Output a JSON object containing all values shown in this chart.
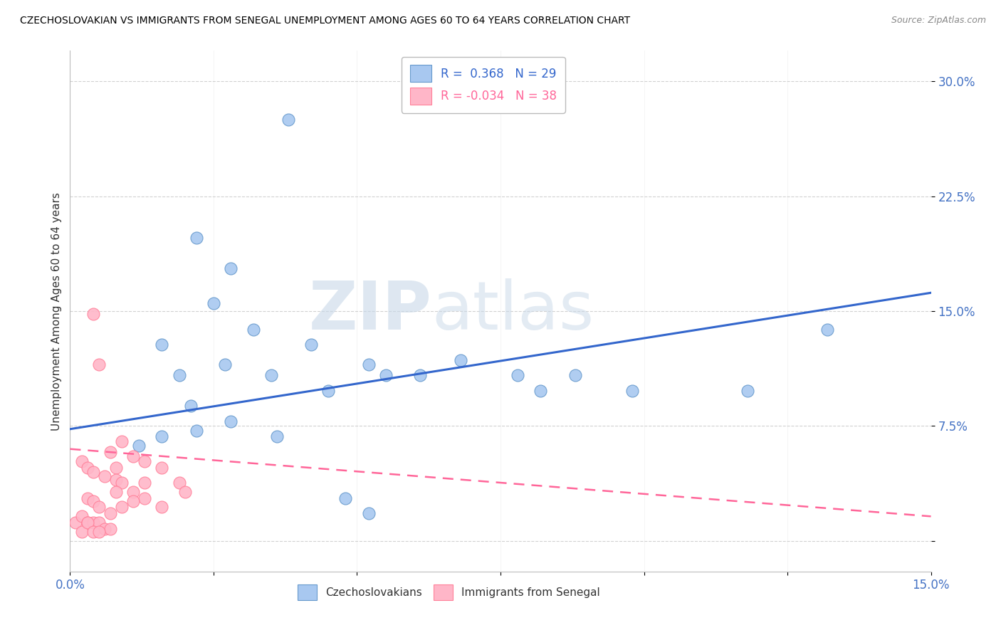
{
  "title": "CZECHOSLOVAKIAN VS IMMIGRANTS FROM SENEGAL UNEMPLOYMENT AMONG AGES 60 TO 64 YEARS CORRELATION CHART",
  "source": "Source: ZipAtlas.com",
  "ylabel": "Unemployment Among Ages 60 to 64 years",
  "xlim": [
    0.0,
    0.15
  ],
  "ylim": [
    -0.02,
    0.32
  ],
  "xticks": [
    0.0,
    0.025,
    0.05,
    0.075,
    0.1,
    0.125,
    0.15
  ],
  "xtick_labels": [
    "0.0%",
    "",
    "",
    "",
    "",
    "",
    "15.0%"
  ],
  "yticks": [
    0.0,
    0.075,
    0.15,
    0.225,
    0.3
  ],
  "ytick_labels": [
    "",
    "7.5%",
    "15.0%",
    "22.5%",
    "30.0%"
  ],
  "blue_scatter_x": [
    0.038,
    0.022,
    0.028,
    0.025,
    0.032,
    0.016,
    0.019,
    0.021,
    0.027,
    0.035,
    0.045,
    0.052,
    0.061,
    0.042,
    0.055,
    0.068,
    0.078,
    0.082,
    0.088,
    0.098,
    0.118,
    0.132,
    0.012,
    0.016,
    0.022,
    0.028,
    0.036,
    0.048,
    0.052
  ],
  "blue_scatter_y": [
    0.275,
    0.198,
    0.178,
    0.155,
    0.138,
    0.128,
    0.108,
    0.088,
    0.115,
    0.108,
    0.098,
    0.115,
    0.108,
    0.128,
    0.108,
    0.118,
    0.108,
    0.098,
    0.108,
    0.098,
    0.098,
    0.138,
    0.062,
    0.068,
    0.072,
    0.078,
    0.068,
    0.028,
    0.018
  ],
  "pink_scatter_x": [
    0.004,
    0.005,
    0.007,
    0.008,
    0.009,
    0.011,
    0.013,
    0.016,
    0.002,
    0.003,
    0.004,
    0.006,
    0.008,
    0.009,
    0.011,
    0.013,
    0.016,
    0.019,
    0.02,
    0.003,
    0.004,
    0.005,
    0.007,
    0.001,
    0.002,
    0.003,
    0.004,
    0.005,
    0.006,
    0.007,
    0.008,
    0.009,
    0.011,
    0.013,
    0.002,
    0.003,
    0.004,
    0.005
  ],
  "pink_scatter_y": [
    0.148,
    0.115,
    0.058,
    0.048,
    0.065,
    0.055,
    0.052,
    0.048,
    0.052,
    0.048,
    0.045,
    0.042,
    0.04,
    0.038,
    0.032,
    0.028,
    0.022,
    0.038,
    0.032,
    0.028,
    0.026,
    0.022,
    0.018,
    0.012,
    0.016,
    0.012,
    0.012,
    0.012,
    0.008,
    0.008,
    0.032,
    0.022,
    0.026,
    0.038,
    0.006,
    0.012,
    0.006,
    0.006
  ],
  "blue_R": 0.368,
  "blue_N": 29,
  "pink_R": -0.034,
  "pink_N": 38,
  "blue_line_x": [
    0.0,
    0.15
  ],
  "blue_line_y": [
    0.073,
    0.162
  ],
  "pink_line_x": [
    0.0,
    0.15
  ],
  "pink_line_y": [
    0.06,
    0.016
  ],
  "blue_dot_color": "#A8C8F0",
  "blue_dot_edge": "#6699CC",
  "pink_dot_color": "#FFB6C8",
  "pink_dot_edge": "#FF8099",
  "blue_line_color": "#3366CC",
  "pink_line_color": "#FF6699",
  "watermark_zip": "ZIP",
  "watermark_atlas": "atlas",
  "background_color": "#FFFFFF",
  "grid_color": "#CCCCCC",
  "tick_color": "#4472C4",
  "title_color": "#000000",
  "ylabel_color": "#333333"
}
